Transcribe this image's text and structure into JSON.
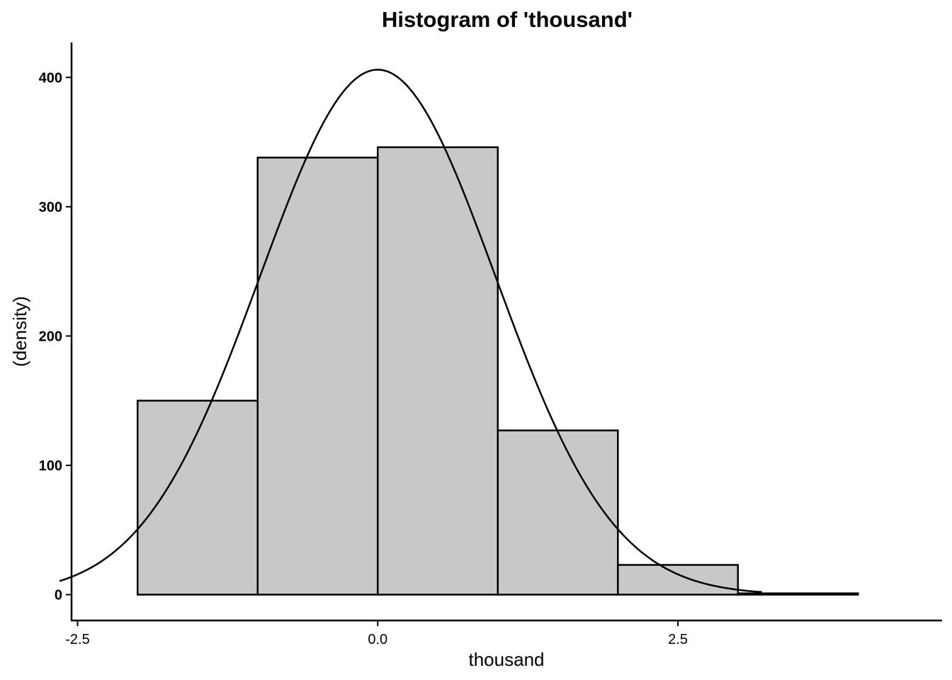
{
  "chart_data": {
    "type": "bar",
    "title": "Histogram of 'thousand'",
    "xlabel": "thousand",
    "ylabel": "(density)",
    "xlim": [
      -2.55,
      4.7
    ],
    "ylim": [
      -20,
      427
    ],
    "x_ticks": [
      {
        "value": -2.5,
        "label": "-2.5"
      },
      {
        "value": 0.0,
        "label": "0.0"
      },
      {
        "value": 2.5,
        "label": "2.5"
      }
    ],
    "y_ticks": [
      {
        "value": 0,
        "label": "0"
      },
      {
        "value": 100,
        "label": "100"
      },
      {
        "value": 200,
        "label": "200"
      },
      {
        "value": 300,
        "label": "300"
      },
      {
        "value": 400,
        "label": "400"
      }
    ],
    "bins": [
      {
        "x0": -2,
        "x1": -1,
        "value": 150
      },
      {
        "x0": -1,
        "x1": 0,
        "value": 338
      },
      {
        "x0": 0,
        "x1": 1,
        "value": 346
      },
      {
        "x0": 1,
        "x1": 2,
        "value": 127
      },
      {
        "x0": 2,
        "x1": 3,
        "value": 23
      },
      {
        "x0": 3,
        "x1": 4,
        "value": 1
      }
    ],
    "density_curve": {
      "type": "normal",
      "mean": 0.0,
      "sd": 0.98,
      "peak": 406,
      "x_range": [
        -2.65,
        3.2
      ]
    },
    "grid": false,
    "legend": "none"
  }
}
